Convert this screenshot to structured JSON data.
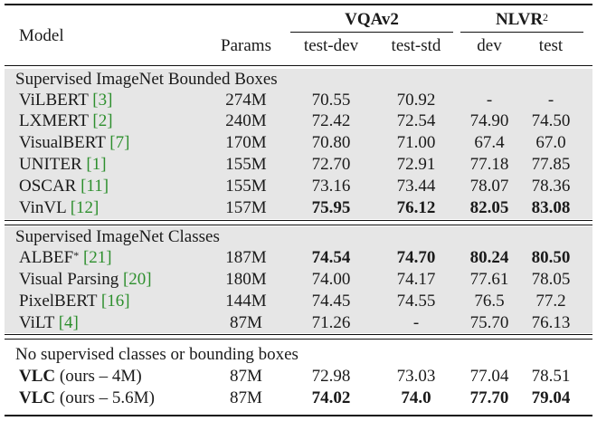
{
  "header": {
    "model": "Model",
    "params": "Params",
    "vqa": "VQAv2",
    "nlvr": "NLVR",
    "nlvr_sup": "2",
    "test_dev": "test-dev",
    "test_std": "test-std",
    "dev": "dev",
    "test": "test"
  },
  "groups": [
    {
      "title": "Supervised ImageNet Bounded Boxes",
      "rows": [
        {
          "name": "ViLBERT",
          "ref": "[3]",
          "params": "274M",
          "test_dev": "70.55",
          "test_std": "70.92",
          "dev": "-",
          "test": "-"
        },
        {
          "name": "LXMERT",
          "ref": "[2]",
          "params": "240M",
          "test_dev": "72.42",
          "test_std": "72.54",
          "dev": "74.90",
          "test": "74.50"
        },
        {
          "name": "VisualBERT",
          "ref": "[7]",
          "params": "170M",
          "test_dev": "70.80",
          "test_std": "71.00",
          "dev": "67.4",
          "test": "67.0"
        },
        {
          "name": "UNITER",
          "ref": "[1]",
          "params": "155M",
          "test_dev": "72.70",
          "test_std": "72.91",
          "dev": "77.18",
          "test": "77.85"
        },
        {
          "name": "OSCAR",
          "ref": "[11]",
          "params": "155M",
          "test_dev": "73.16",
          "test_std": "73.44",
          "dev": "78.07",
          "test": "78.36"
        },
        {
          "name": "VinVL",
          "ref": "[12]",
          "params": "157M",
          "test_dev": "75.95",
          "test_std": "76.12",
          "dev": "82.05",
          "test": "83.08"
        }
      ]
    },
    {
      "title": "Supervised ImageNet Classes",
      "rows": [
        {
          "name": "ALBEF",
          "sup": "*",
          "ref": "[21]",
          "params": "187M",
          "test_dev": "74.54",
          "test_std": "74.70",
          "dev": "80.24",
          "test": "80.50"
        },
        {
          "name": "Visual Parsing",
          "ref": "[20]",
          "params": "180M",
          "test_dev": "74.00",
          "test_std": "74.17",
          "dev": "77.61",
          "test": "78.05"
        },
        {
          "name": "PixelBERT",
          "ref": "[16]",
          "params": "144M",
          "test_dev": "74.45",
          "test_std": "74.55",
          "dev": "76.5",
          "test": "77.2"
        },
        {
          "name": "ViLT",
          "ref": "[4]",
          "params": "87M",
          "test_dev": "71.26",
          "test_std": "-",
          "dev": "75.70",
          "test": "76.13"
        }
      ]
    },
    {
      "title": "No supervised classes or bounding boxes",
      "rows": [
        {
          "name": "VLC",
          "suffix": "(ours – 4M)",
          "params": "87M",
          "test_dev": "72.98",
          "test_std": "73.03",
          "dev": "77.04",
          "test": "78.51"
        },
        {
          "name": "VLC",
          "suffix": "(ours – 5.6M)",
          "params": "87M",
          "test_dev": "74.02",
          "test_std": "74.0",
          "dev": "77.70",
          "test": "79.04"
        }
      ]
    }
  ]
}
